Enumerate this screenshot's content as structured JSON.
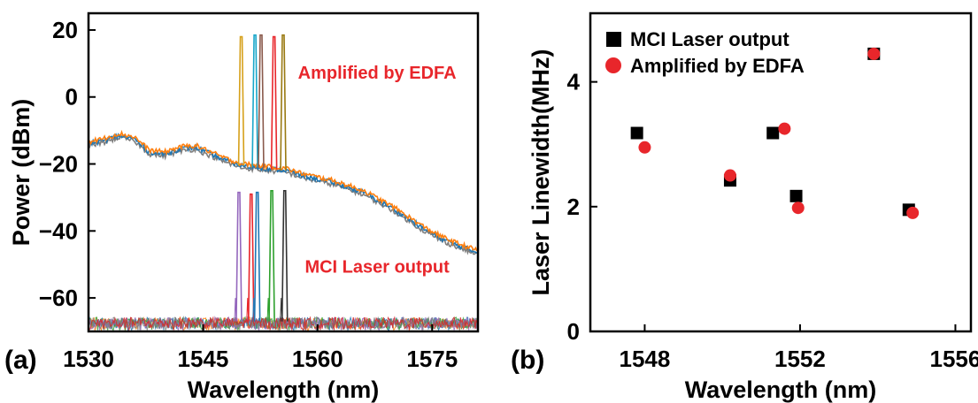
{
  "chart_data": [
    {
      "type": "line",
      "panel_label": "(a)",
      "xlabel": "Wavelength (nm)",
      "ylabel": "Power (dBm)",
      "xlim": [
        1530,
        1581
      ],
      "ylim": [
        -70,
        25
      ],
      "xticks": [
        1530,
        1545,
        1560,
        1575
      ],
      "yticks": [
        20,
        0,
        -20,
        -40,
        -60
      ],
      "annotations": [
        {
          "text": "Amplified by EDFA",
          "color": "#e8262b",
          "x": 1567.8,
          "y": 5.5
        },
        {
          "text": "MCI Laser output",
          "color": "#e8262b",
          "x": 1567.8,
          "y": -52.5
        }
      ],
      "amplified_background": {
        "x": [
          1530,
          1532,
          1534,
          1536,
          1538,
          1540,
          1542,
          1544,
          1546,
          1548,
          1550,
          1552,
          1554,
          1556,
          1558,
          1560,
          1562,
          1564,
          1566,
          1568,
          1570,
          1572,
          1574,
          1576,
          1578,
          1581
        ],
        "y": [
          -14,
          -13,
          -11.5,
          -12.5,
          -16.5,
          -17,
          -15.5,
          -15,
          -17,
          -19,
          -20.5,
          -21,
          -21.5,
          -22,
          -23.5,
          -24.5,
          -25.5,
          -27,
          -28.5,
          -31,
          -33.5,
          -36.5,
          -39.5,
          -42,
          -44,
          -46.5
        ]
      },
      "amplified_peaks": [
        {
          "x": 1550.0,
          "y": 18,
          "color": "#d6a01a"
        },
        {
          "x": 1551.8,
          "y": 18.5,
          "color": "#18a6c9"
        },
        {
          "x": 1552.6,
          "y": 18.5,
          "color": "#8a5a4c"
        },
        {
          "x": 1554.3,
          "y": 18,
          "color": "#e8262b"
        },
        {
          "x": 1555.5,
          "y": 18.5,
          "color": "#9a7a12"
        }
      ],
      "laser_peaks": [
        {
          "x": 1549.7,
          "y": -28.5,
          "color": "#9467bd"
        },
        {
          "x": 1551.3,
          "y": -29,
          "color": "#e8262b"
        },
        {
          "x": 1552.1,
          "y": -28.5,
          "color": "#1f77b4"
        },
        {
          "x": 1554.0,
          "y": -28,
          "color": "#2ca02c"
        },
        {
          "x": 1555.7,
          "y": -28,
          "color": "#333333"
        }
      ],
      "noise_floor": -67,
      "series_colors": [
        "#ff7f0e",
        "#1f77b4",
        "#2ca02c",
        "#9467bd",
        "#7f7f7f",
        "#d62728"
      ]
    },
    {
      "type": "scatter",
      "panel_label": "(b)",
      "xlabel": "Wavelength (nm)",
      "ylabel": "Laser Linewidth(MHz)",
      "xlim": [
        1546.6,
        1556.4
      ],
      "ylim": [
        0,
        5.1
      ],
      "xticks": [
        1548,
        1552,
        1556
      ],
      "yticks": [
        0,
        2,
        4
      ],
      "legend_position": "top-left",
      "series": [
        {
          "name": "MCI Laser output",
          "marker": "square",
          "color": "#000000",
          "x": [
            1547.8,
            1550.2,
            1551.3,
            1551.9,
            1553.9,
            1554.8
          ],
          "y": [
            3.18,
            2.42,
            3.18,
            2.17,
            4.45,
            1.95
          ]
        },
        {
          "name": "Amplified by EDFA",
          "marker": "circle",
          "color": "#e8262b",
          "x": [
            1548.0,
            1550.2,
            1551.6,
            1551.95,
            1553.9,
            1554.9
          ],
          "y": [
            2.95,
            2.5,
            3.25,
            1.98,
            4.45,
            1.9
          ]
        }
      ]
    }
  ]
}
